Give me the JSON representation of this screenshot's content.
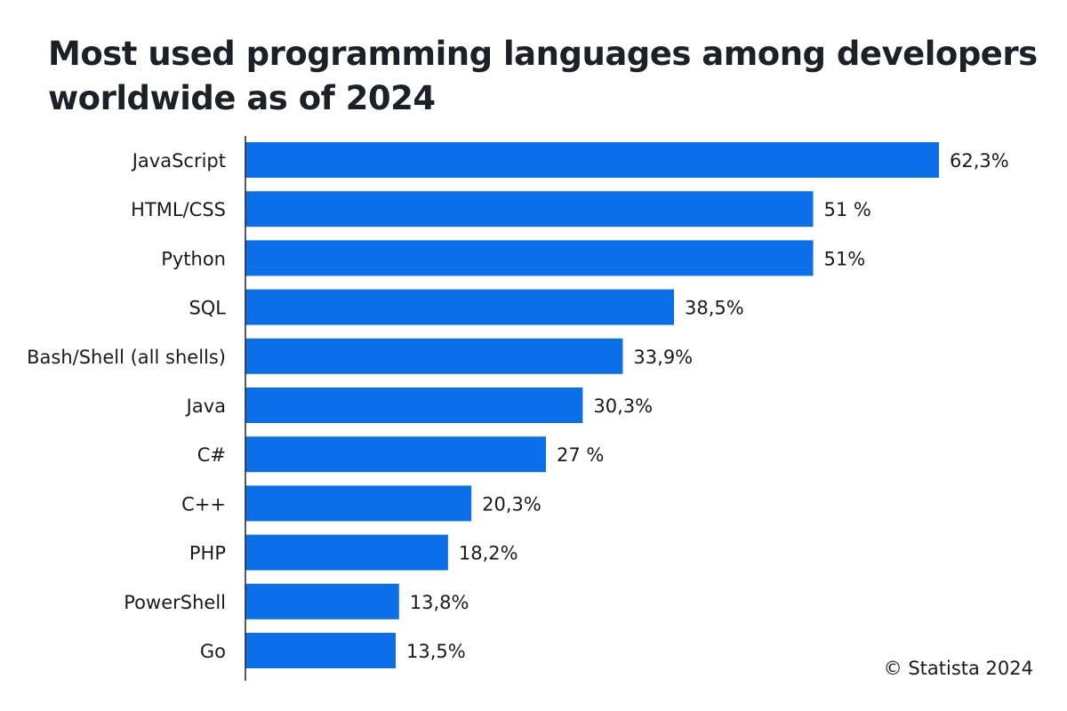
{
  "chart_data": {
    "type": "bar",
    "orientation": "horizontal",
    "title": "Most used programming languages among developers worldwide as of 2024",
    "categories": [
      "JavaScript",
      "HTML/CSS",
      "Python",
      "SQL",
      "Bash/Shell (all shells)",
      "Java",
      "C#",
      "C++",
      "PHP",
      "PowerShell",
      "Go"
    ],
    "values": [
      62.3,
      51,
      51,
      38.5,
      33.9,
      30.3,
      27,
      20.3,
      18.2,
      13.8,
      13.5
    ],
    "value_labels": [
      "62,3%",
      "51 %",
      "51%",
      "38,5%",
      "33,9%",
      "30,3%",
      "27 %",
      "20,3%",
      "18,2%",
      "13,8%",
      "13,5%"
    ],
    "unit": "%",
    "xlim": [
      0,
      62.3
    ],
    "grid": false,
    "bar_color": "#0a6fe8"
  },
  "credit": "© Statista 2024"
}
